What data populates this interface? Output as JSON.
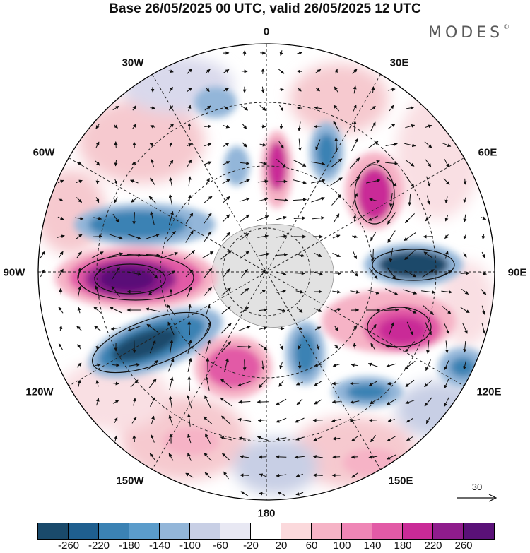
{
  "header": {
    "title": "Base 26/05/2025 00 UTC, valid 26/05/2025 12 UTC"
  },
  "brand": {
    "name": "MODES",
    "mark": "©"
  },
  "map": {
    "projection": "south polar stereographic",
    "longitude_labels": {
      "0": "0",
      "30e": "30E",
      "60e": "60E",
      "90e": "90E",
      "120e": "120E",
      "150e": "150E",
      "180": "180",
      "150w": "150W",
      "120w": "120W",
      "90w": "90W",
      "60w": "60W",
      "30w": "30W"
    }
  },
  "reference_vector": {
    "label": "30",
    "icon": "arrow-right-icon"
  },
  "colorbar": {
    "colors": [
      "#1a4a6b",
      "#1f5f8f",
      "#3b82b4",
      "#5b9ccb",
      "#93b6d9",
      "#c8cfe5",
      "#e8e8f3",
      "#ffffff",
      "#fbd9dc",
      "#f6b3c6",
      "#ef86b6",
      "#e25aa6",
      "#c92a97",
      "#8f1c8c",
      "#5a1178"
    ],
    "tick_labels": [
      "-260",
      "-220",
      "-180",
      "-140",
      "-100",
      "-60",
      "-20",
      "20",
      "60",
      "100",
      "140",
      "180",
      "220",
      "260"
    ]
  }
}
